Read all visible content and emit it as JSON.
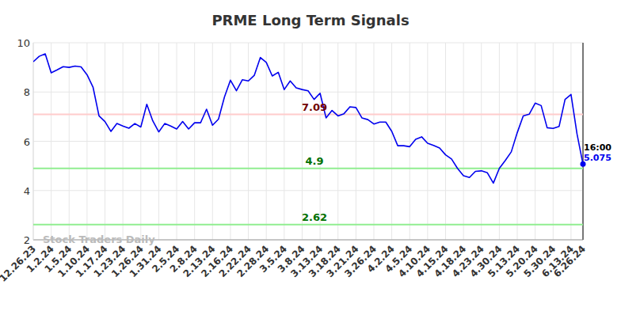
{
  "chart_data": {
    "type": "line",
    "title": "PRME Long Term Signals",
    "watermark": "Stock Traders Daily",
    "categories": [
      "12.26.23",
      null,
      null,
      "1.2.24",
      null,
      null,
      "1.5.24",
      null,
      null,
      "1.10.24",
      null,
      null,
      "1.17.24",
      null,
      null,
      "1.23.24",
      null,
      null,
      "1.26.24",
      null,
      null,
      "1.31.24",
      null,
      null,
      "2.5.24",
      null,
      null,
      "2.8.24",
      null,
      null,
      "2.13.24",
      null,
      null,
      "2.16.24",
      null,
      null,
      "2.22.24",
      null,
      null,
      "2.28.24",
      null,
      null,
      "3.5.24",
      null,
      null,
      "3.8.24",
      null,
      null,
      "3.13.24",
      null,
      null,
      "3.18.24",
      null,
      null,
      "3.21.24",
      null,
      null,
      "3.26.24",
      null,
      null,
      "4.2.24",
      null,
      null,
      "4.5.24",
      null,
      null,
      "4.10.24",
      null,
      null,
      "4.15.24",
      null,
      null,
      "4.18.24",
      null,
      null,
      "4.23.24",
      null,
      null,
      "4.30.24",
      null,
      null,
      "5.13.24",
      null,
      null,
      "5.20.24",
      null,
      null,
      "5.30.24",
      null,
      null,
      "6.13.24",
      null,
      "6.26.24"
    ],
    "series": [
      {
        "name": "PRME",
        "color": "#0000ee",
        "values": [
          9.23,
          9.45,
          9.55,
          8.78,
          8.9,
          9.03,
          9.0,
          9.05,
          9.02,
          8.7,
          8.2,
          7.03,
          6.8,
          6.4,
          6.72,
          6.62,
          6.53,
          6.72,
          6.58,
          7.5,
          6.83,
          6.38,
          6.72,
          6.62,
          6.5,
          6.8,
          6.5,
          6.75,
          6.75,
          7.3,
          6.65,
          6.9,
          7.8,
          8.48,
          8.05,
          8.5,
          8.45,
          8.68,
          9.4,
          9.2,
          8.65,
          8.8,
          8.1,
          8.45,
          8.17,
          8.1,
          8.05,
          7.7,
          7.95,
          6.95,
          7.25,
          7.03,
          7.12,
          7.4,
          7.37,
          6.95,
          6.88,
          6.7,
          6.78,
          6.78,
          6.4,
          5.82,
          5.82,
          5.78,
          6.08,
          6.18,
          5.92,
          5.83,
          5.73,
          5.45,
          5.28,
          4.9,
          4.6,
          4.53,
          4.78,
          4.8,
          4.72,
          4.3,
          4.9,
          5.22,
          5.57,
          6.35,
          7.03,
          7.1,
          7.55,
          7.45,
          6.55,
          6.52,
          6.6,
          7.7,
          7.9,
          6.3,
          5.075
        ]
      }
    ],
    "ylim": [
      2,
      10
    ],
    "yticks": [
      2,
      4,
      6,
      8,
      10
    ],
    "grid": true,
    "annotations": [
      {
        "text": "7.09",
        "y": 7.09,
        "color": "#ffcccc"
      },
      {
        "text": "4.9",
        "y": 4.9,
        "color": "#90ee90"
      },
      {
        "text": "2.62",
        "y": 2.62,
        "color": "#90ee90"
      },
      {
        "text": "16:00",
        "color": "#000000"
      },
      {
        "text": "5.075",
        "y": 5.075,
        "color": "#0000ee"
      }
    ]
  }
}
